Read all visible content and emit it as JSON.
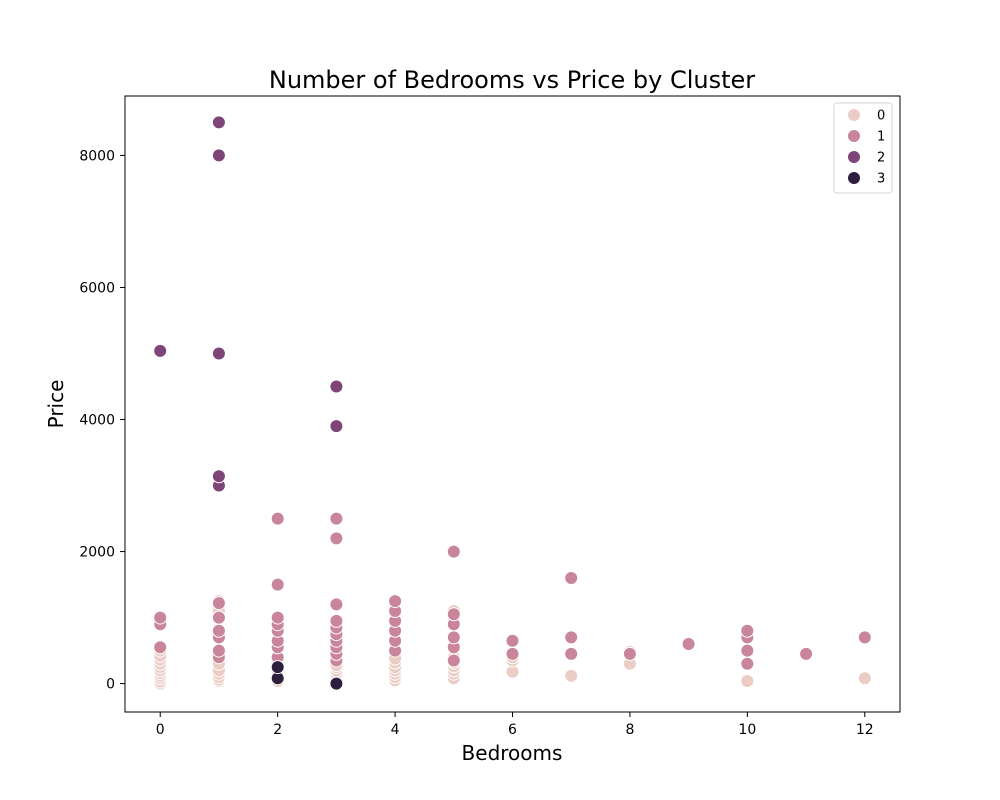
{
  "chart_data": {
    "type": "scatter",
    "title": "Number of Bedrooms vs Price by Cluster",
    "xlabel": "Bedrooms",
    "ylabel": "Price",
    "xlim": [
      -0.6,
      12.6
    ],
    "ylim": [
      -430,
      8900
    ],
    "xticks": [
      0,
      2,
      4,
      6,
      8,
      10,
      12
    ],
    "yticks": [
      0,
      2000,
      4000,
      6000,
      8000
    ],
    "grid": false,
    "legend_position": "top-right",
    "series": [
      {
        "name": "0",
        "color": "#ebcdc5",
        "points": [
          [
            0,
            0
          ],
          [
            0,
            30
          ],
          [
            0,
            80
          ],
          [
            0,
            120
          ],
          [
            0,
            160
          ],
          [
            0,
            200
          ],
          [
            0,
            250
          ],
          [
            0,
            300
          ],
          [
            0,
            360
          ],
          [
            0,
            420
          ],
          [
            0,
            500
          ],
          [
            1,
            40
          ],
          [
            1,
            60
          ],
          [
            1,
            100
          ],
          [
            1,
            150
          ],
          [
            1,
            200
          ],
          [
            1,
            300
          ],
          [
            1,
            1100
          ],
          [
            1,
            1250
          ],
          [
            2,
            40
          ],
          [
            2,
            100
          ],
          [
            2,
            150
          ],
          [
            2,
            200
          ],
          [
            2,
            250
          ],
          [
            2,
            300
          ],
          [
            2,
            320
          ],
          [
            3,
            30
          ],
          [
            3,
            60
          ],
          [
            3,
            100
          ],
          [
            3,
            150
          ],
          [
            3,
            200
          ],
          [
            3,
            250
          ],
          [
            3,
            280
          ],
          [
            4,
            50
          ],
          [
            4,
            100
          ],
          [
            4,
            150
          ],
          [
            4,
            200
          ],
          [
            4,
            250
          ],
          [
            4,
            320
          ],
          [
            4,
            380
          ],
          [
            5,
            80
          ],
          [
            5,
            150
          ],
          [
            5,
            200
          ],
          [
            5,
            260
          ],
          [
            5,
            320
          ],
          [
            5,
            400
          ],
          [
            5,
            1000
          ],
          [
            5,
            1100
          ],
          [
            6,
            180
          ],
          [
            6,
            350
          ],
          [
            6,
            400
          ],
          [
            7,
            120
          ],
          [
            8,
            300
          ],
          [
            8,
            480
          ],
          [
            10,
            40
          ],
          [
            12,
            80
          ]
        ]
      },
      {
        "name": "1",
        "color": "#c98599",
        "points": [
          [
            0,
            550
          ],
          [
            0,
            900
          ],
          [
            0,
            1000
          ],
          [
            1,
            400
          ],
          [
            1,
            500
          ],
          [
            1,
            700
          ],
          [
            1,
            800
          ],
          [
            1,
            1000
          ],
          [
            1,
            1220
          ],
          [
            2,
            400
          ],
          [
            2,
            550
          ],
          [
            2,
            650
          ],
          [
            2,
            800
          ],
          [
            2,
            900
          ],
          [
            2,
            1000
          ],
          [
            2,
            1500
          ],
          [
            2,
            2500
          ],
          [
            3,
            350
          ],
          [
            3,
            450
          ],
          [
            3,
            550
          ],
          [
            3,
            650
          ],
          [
            3,
            750
          ],
          [
            3,
            850
          ],
          [
            3,
            950
          ],
          [
            3,
            1200
          ],
          [
            3,
            2200
          ],
          [
            3,
            2500
          ],
          [
            4,
            500
          ],
          [
            4,
            650
          ],
          [
            4,
            800
          ],
          [
            4,
            950
          ],
          [
            4,
            1100
          ],
          [
            4,
            1250
          ],
          [
            5,
            350
          ],
          [
            5,
            550
          ],
          [
            5,
            700
          ],
          [
            5,
            900
          ],
          [
            5,
            1050
          ],
          [
            5,
            2000
          ],
          [
            6,
            450
          ],
          [
            6,
            650
          ],
          [
            7,
            450
          ],
          [
            7,
            700
          ],
          [
            7,
            1600
          ],
          [
            8,
            450
          ],
          [
            9,
            600
          ],
          [
            10,
            300
          ],
          [
            10,
            500
          ],
          [
            10,
            700
          ],
          [
            10,
            800
          ],
          [
            11,
            450
          ],
          [
            12,
            700
          ]
        ]
      },
      {
        "name": "2",
        "color": "#7e4579",
        "points": [
          [
            0,
            5040
          ],
          [
            1,
            3000
          ],
          [
            1,
            3140
          ],
          [
            1,
            5000
          ],
          [
            1,
            8000
          ],
          [
            1,
            8500
          ],
          [
            3,
            3900
          ],
          [
            3,
            4500
          ]
        ]
      },
      {
        "name": "3",
        "color": "#2d1e3e",
        "points": [
          [
            2,
            80
          ],
          [
            2,
            250
          ],
          [
            3,
            0
          ]
        ]
      }
    ]
  }
}
